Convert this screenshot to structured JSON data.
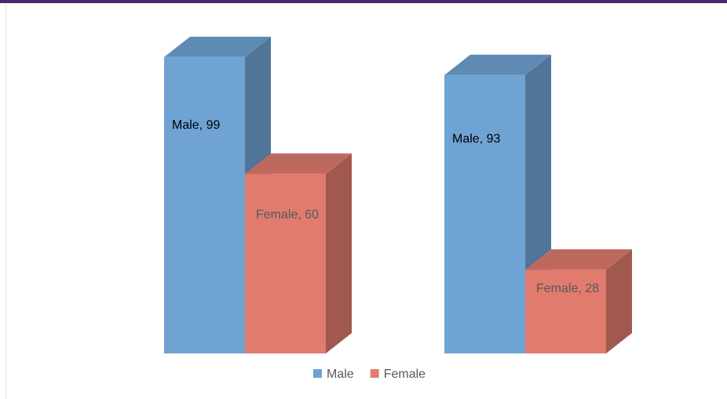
{
  "chart_data": {
    "type": "bar3d",
    "categories": [
      null,
      null
    ],
    "legend": "bottom",
    "series": [
      {
        "name": "Male",
        "color": "#6fa3d4",
        "values": [
          99,
          93
        ],
        "value_labels": [
          "Male, 99",
          "Male, 93"
        ]
      },
      {
        "name": "Female",
        "color": "#e07b6e",
        "values": [
          60,
          28
        ],
        "value_labels": [
          "Female, 60",
          "Female, 28"
        ]
      }
    ]
  }
}
